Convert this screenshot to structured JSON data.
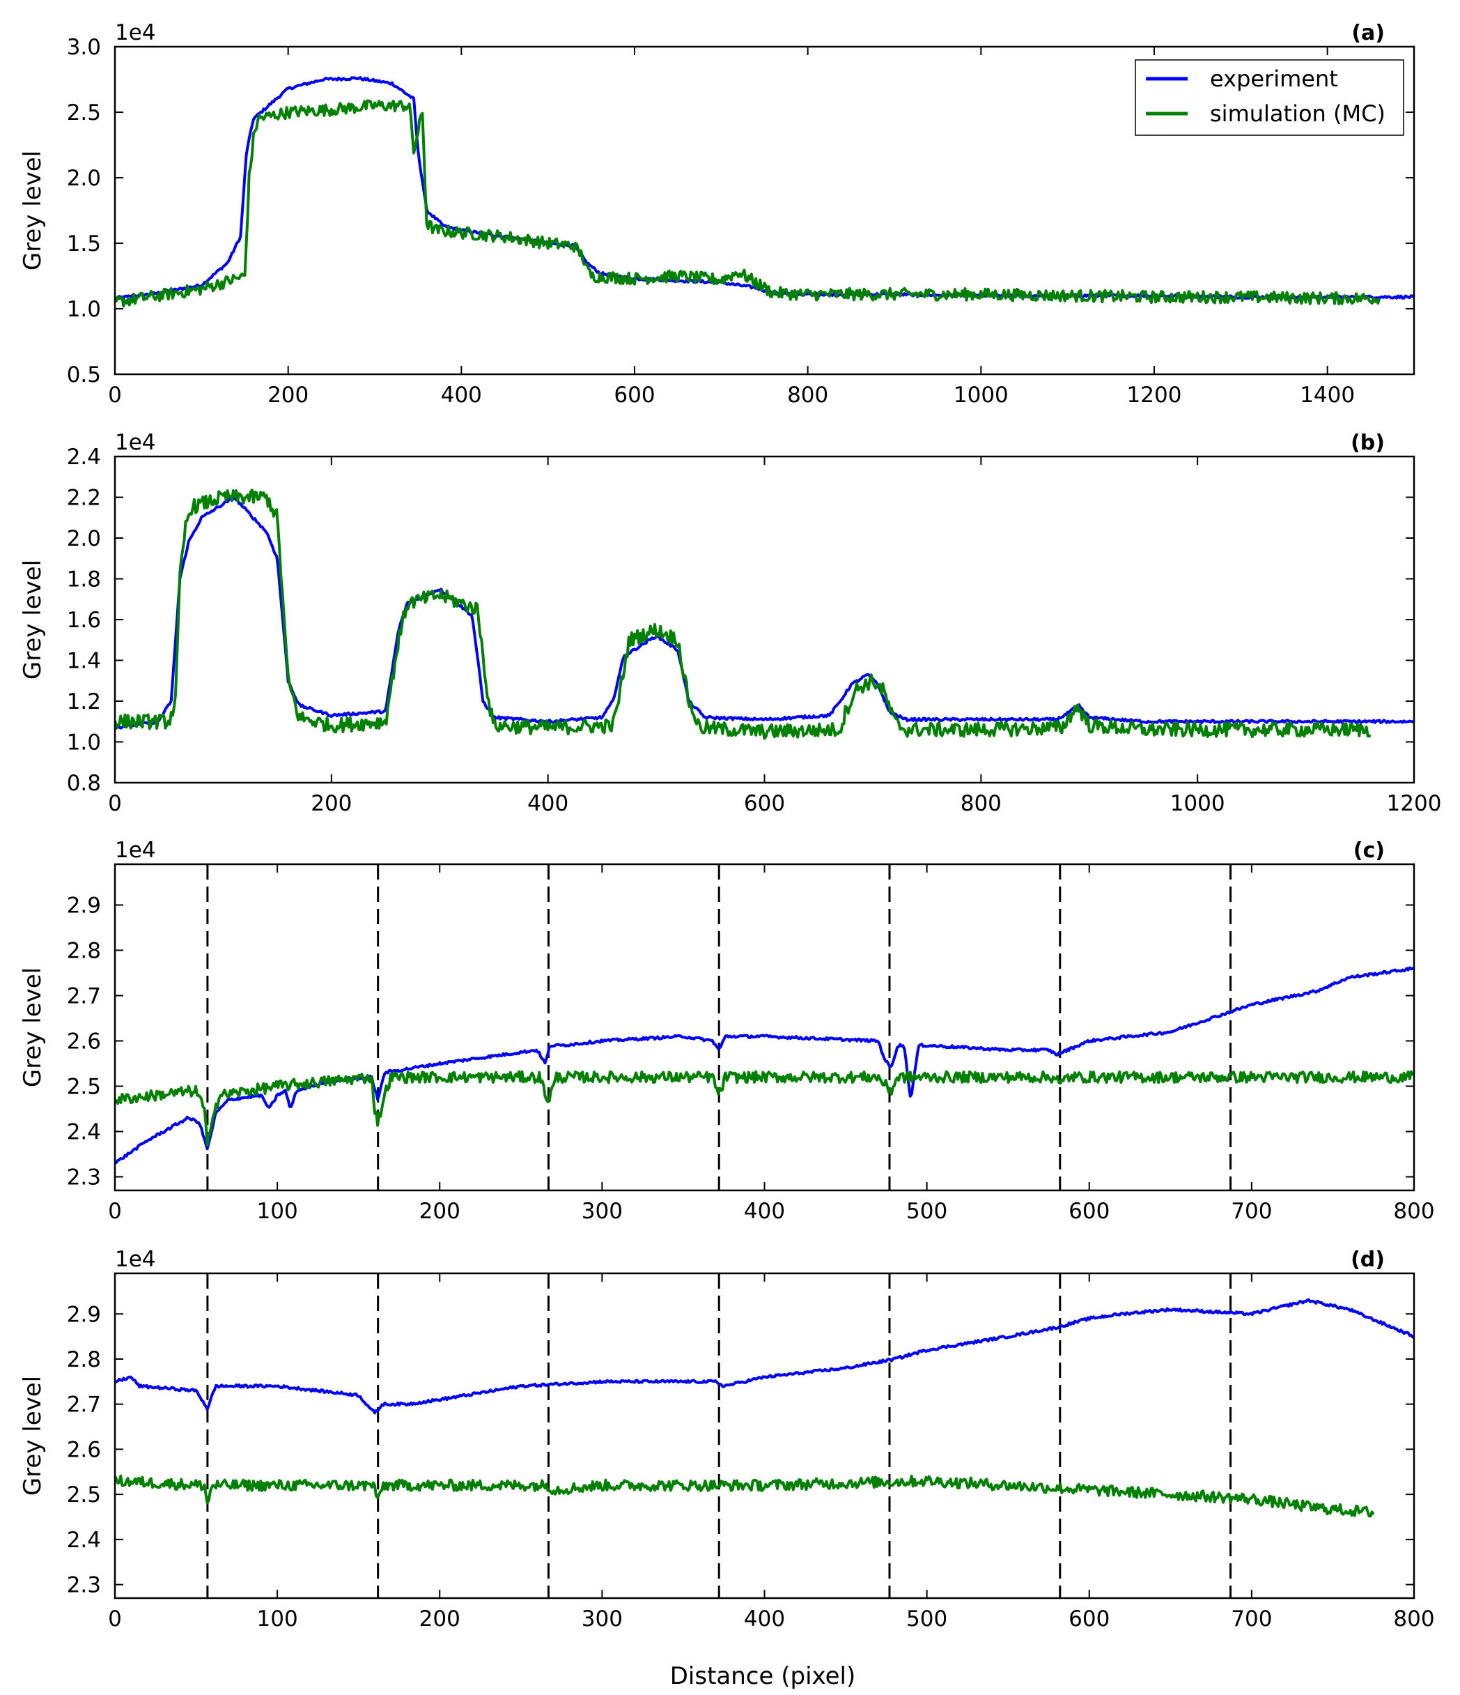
{
  "colors": {
    "experiment": "#0000ff",
    "simulation": "#008000",
    "dashed": "#000000"
  },
  "legend": {
    "position": "top-right",
    "entries": [
      "experiment",
      "simulation (MC)"
    ]
  },
  "xlabel_shared": "Distance (pixel)",
  "chart_data": [
    {
      "type": "line",
      "panel_label": "(a)",
      "ylabel": "Grey level",
      "offset_text": "1e4",
      "xlim": [
        0,
        1500
      ],
      "ylim": [
        0.5,
        3.0
      ],
      "xticks": [
        0,
        200,
        400,
        600,
        800,
        1000,
        1200,
        1400
      ],
      "yticks": [
        0.5,
        1.0,
        1.5,
        2.0,
        2.5,
        3.0
      ],
      "xticklabels": [
        "0",
        "200",
        "400",
        "600",
        "800",
        "1000",
        "1200",
        "1400"
      ],
      "yticklabels": [
        "0.5",
        "1.0",
        "1.5",
        "2.0",
        "2.5",
        "3.0"
      ],
      "series": [
        {
          "name": "experiment",
          "x": [
            0,
            50,
            100,
            130,
            145,
            152,
            160,
            200,
            240,
            280,
            320,
            345,
            350,
            360,
            380,
            400,
            450,
            500,
            530,
            545,
            560,
            600,
            700,
            740,
            760,
            800,
            900,
            1000,
            1100,
            1200,
            1300,
            1400,
            1500
          ],
          "y": [
            1.08,
            1.12,
            1.18,
            1.35,
            1.55,
            2.2,
            2.45,
            2.68,
            2.75,
            2.76,
            2.72,
            2.6,
            2.2,
            1.75,
            1.63,
            1.6,
            1.55,
            1.5,
            1.48,
            1.35,
            1.27,
            1.23,
            1.2,
            1.16,
            1.12,
            1.11,
            1.11,
            1.1,
            1.1,
            1.1,
            1.09,
            1.09,
            1.09
          ]
        },
        {
          "name": "simulation (MC)",
          "x": [
            0,
            50,
            100,
            150,
            155,
            160,
            165,
            200,
            250,
            300,
            340,
            345,
            355,
            360,
            370,
            400,
            450,
            500,
            530,
            540,
            545,
            550,
            600,
            650,
            700,
            720,
            740,
            760,
            800,
            900,
            1000,
            1100,
            1200,
            1300,
            1400,
            1460
          ],
          "y": [
            1.05,
            1.1,
            1.15,
            1.25,
            2.0,
            2.3,
            2.45,
            2.5,
            2.52,
            2.55,
            2.55,
            2.2,
            2.5,
            1.65,
            1.6,
            1.58,
            1.55,
            1.5,
            1.48,
            1.4,
            1.3,
            1.25,
            1.23,
            1.25,
            1.22,
            1.28,
            1.2,
            1.12,
            1.11,
            1.11,
            1.11,
            1.1,
            1.09,
            1.09,
            1.08,
            1.08
          ],
          "noise": 0.045
        }
      ]
    },
    {
      "type": "line",
      "panel_label": "(b)",
      "ylabel": "Grey level",
      "offset_text": "1e4",
      "xlim": [
        0,
        1200
      ],
      "ylim": [
        0.8,
        2.4
      ],
      "xticks": [
        0,
        200,
        400,
        600,
        800,
        1000,
        1200
      ],
      "yticks": [
        0.8,
        1.0,
        1.2,
        1.4,
        1.6,
        1.8,
        2.0,
        2.2,
        2.4
      ],
      "xticklabels": [
        "0",
        "200",
        "400",
        "600",
        "800",
        "1000",
        "1200"
      ],
      "yticklabels": [
        "0.8",
        "1.0",
        "1.2",
        "1.4",
        "1.6",
        "1.8",
        "2.0",
        "2.2",
        "2.4"
      ],
      "series": [
        {
          "name": "experiment",
          "x": [
            0,
            40,
            52,
            60,
            68,
            80,
            110,
            140,
            150,
            160,
            170,
            200,
            250,
            262,
            270,
            300,
            330,
            340,
            350,
            400,
            450,
            460,
            470,
            500,
            520,
            530,
            545,
            600,
            660,
            670,
            680,
            695,
            705,
            715,
            730,
            800,
            870,
            880,
            890,
            900,
            950,
            1000,
            1100,
            1200
          ],
          "y": [
            1.07,
            1.1,
            1.2,
            1.8,
            1.98,
            2.1,
            2.2,
            2.03,
            1.9,
            1.3,
            1.18,
            1.13,
            1.15,
            1.55,
            1.68,
            1.75,
            1.62,
            1.2,
            1.12,
            1.1,
            1.12,
            1.2,
            1.42,
            1.52,
            1.45,
            1.2,
            1.12,
            1.11,
            1.13,
            1.2,
            1.28,
            1.33,
            1.28,
            1.15,
            1.11,
            1.11,
            1.11,
            1.14,
            1.18,
            1.12,
            1.1,
            1.1,
            1.1,
            1.1
          ]
        },
        {
          "name": "simulation (MC)",
          "x": [
            0,
            50,
            56,
            60,
            65,
            70,
            100,
            140,
            150,
            160,
            170,
            200,
            250,
            262,
            270,
            300,
            335,
            345,
            350,
            400,
            460,
            465,
            475,
            500,
            520,
            530,
            540,
            600,
            670,
            675,
            685,
            700,
            710,
            720,
            730,
            800,
            875,
            885,
            890,
            900,
            950,
            1000,
            1100,
            1160
          ],
          "y": [
            1.1,
            1.1,
            1.2,
            1.8,
            2.05,
            2.15,
            2.2,
            2.2,
            2.1,
            1.3,
            1.12,
            1.08,
            1.1,
            1.5,
            1.68,
            1.72,
            1.65,
            1.2,
            1.08,
            1.07,
            1.08,
            1.2,
            1.5,
            1.55,
            1.5,
            1.2,
            1.07,
            1.05,
            1.06,
            1.15,
            1.26,
            1.3,
            1.25,
            1.1,
            1.06,
            1.06,
            1.07,
            1.15,
            1.17,
            1.08,
            1.06,
            1.06,
            1.06,
            1.06
          ],
          "noise": 0.035
        }
      ]
    },
    {
      "type": "line",
      "panel_label": "(c)",
      "ylabel": "Grey level",
      "offset_text": "1e4",
      "xlim": [
        0,
        800
      ],
      "ylim": [
        2.27,
        2.99
      ],
      "xticks": [
        0,
        100,
        200,
        300,
        400,
        500,
        600,
        700,
        800
      ],
      "yticks": [
        2.3,
        2.4,
        2.5,
        2.6,
        2.7,
        2.8,
        2.9
      ],
      "xticklabels": [
        "0",
        "100",
        "200",
        "300",
        "400",
        "500",
        "600",
        "700",
        "800"
      ],
      "yticklabels": [
        "2.3",
        "2.4",
        "2.5",
        "2.6",
        "2.7",
        "2.8",
        "2.9"
      ],
      "vlines": [
        57,
        162,
        267,
        372,
        477,
        582,
        687
      ],
      "series": [
        {
          "name": "experiment",
          "x": [
            0,
            20,
            45,
            52,
            57,
            62,
            70,
            90,
            95,
            100,
            105,
            108,
            112,
            130,
            158,
            162,
            166,
            200,
            260,
            265,
            268,
            275,
            300,
            350,
            368,
            372,
            376,
            400,
            470,
            474,
            478,
            482,
            486,
            490,
            495,
            500,
            550,
            575,
            580,
            600,
            650,
            700,
            740,
            760,
            800
          ],
          "y": [
            2.33,
            2.38,
            2.43,
            2.42,
            2.36,
            2.44,
            2.47,
            2.48,
            2.45,
            2.48,
            2.49,
            2.45,
            2.49,
            2.51,
            2.52,
            2.47,
            2.53,
            2.55,
            2.58,
            2.55,
            2.59,
            2.59,
            2.6,
            2.61,
            2.6,
            2.58,
            2.61,
            2.61,
            2.6,
            2.56,
            2.54,
            2.59,
            2.59,
            2.47,
            2.59,
            2.59,
            2.58,
            2.58,
            2.57,
            2.6,
            2.62,
            2.68,
            2.71,
            2.74,
            2.76
          ]
        },
        {
          "name": "simulation (MC)",
          "x": [
            0,
            50,
            55,
            57,
            60,
            65,
            100,
            158,
            160,
            162,
            166,
            170,
            200,
            262,
            265,
            267,
            272,
            300,
            368,
            372,
            376,
            400,
            470,
            475,
            478,
            482,
            500,
            580,
            582,
            586,
            600,
            700,
            800
          ],
          "y": [
            2.47,
            2.49,
            2.45,
            2.36,
            2.44,
            2.48,
            2.5,
            2.52,
            2.45,
            2.42,
            2.48,
            2.52,
            2.52,
            2.52,
            2.48,
            2.47,
            2.52,
            2.52,
            2.52,
            2.48,
            2.52,
            2.52,
            2.52,
            2.5,
            2.49,
            2.52,
            2.52,
            2.52,
            2.5,
            2.52,
            2.52,
            2.52,
            2.52
          ],
          "noise": 0.012
        }
      ]
    },
    {
      "type": "line",
      "panel_label": "(d)",
      "ylabel": "Grey level",
      "offset_text": "1e4",
      "xlabel": "Distance (pixel)",
      "xlim": [
        0,
        800
      ],
      "ylim": [
        2.27,
        2.99
      ],
      "xticks": [
        0,
        100,
        200,
        300,
        400,
        500,
        600,
        700,
        800
      ],
      "yticks": [
        2.3,
        2.4,
        2.5,
        2.6,
        2.7,
        2.8,
        2.9
      ],
      "xticklabels": [
        "0",
        "100",
        "200",
        "300",
        "400",
        "500",
        "600",
        "700",
        "800"
      ],
      "yticklabels": [
        "2.3",
        "2.4",
        "2.5",
        "2.6",
        "2.7",
        "2.8",
        "2.9"
      ],
      "vlines": [
        57,
        162,
        267,
        372,
        477,
        582,
        687
      ],
      "series": [
        {
          "name": "experiment",
          "x": [
            0,
            10,
            15,
            50,
            57,
            62,
            100,
            150,
            160,
            165,
            180,
            200,
            250,
            300,
            350,
            370,
            375,
            400,
            450,
            480,
            500,
            550,
            580,
            600,
            620,
            650,
            700,
            735,
            760,
            780,
            800
          ],
          "y": [
            2.75,
            2.76,
            2.74,
            2.73,
            2.69,
            2.74,
            2.74,
            2.72,
            2.68,
            2.7,
            2.7,
            2.71,
            2.74,
            2.75,
            2.75,
            2.75,
            2.74,
            2.76,
            2.78,
            2.8,
            2.82,
            2.85,
            2.87,
            2.89,
            2.9,
            2.91,
            2.9,
            2.93,
            2.91,
            2.88,
            2.85
          ]
        },
        {
          "name": "simulation (MC)",
          "x": [
            0,
            55,
            57,
            60,
            100,
            160,
            162,
            165,
            200,
            267,
            270,
            300,
            400,
            500,
            600,
            700,
            740,
            775
          ],
          "y": [
            2.53,
            2.52,
            2.48,
            2.52,
            2.52,
            2.52,
            2.48,
            2.52,
            2.52,
            2.52,
            2.51,
            2.52,
            2.52,
            2.53,
            2.51,
            2.49,
            2.47,
            2.46
          ],
          "noise": 0.012
        }
      ]
    }
  ]
}
